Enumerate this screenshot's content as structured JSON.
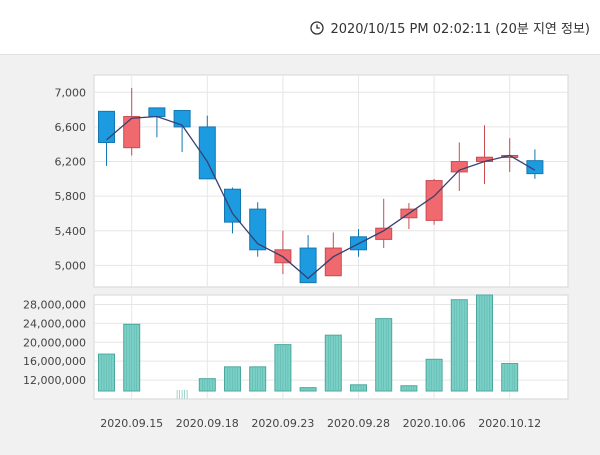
{
  "header": {
    "timestamp": "2020/10/15 PM 02:02:11 (20분 지연 정보)"
  },
  "colors": {
    "up": "#f0696e",
    "down": "#1c9be0",
    "ma": "#3a3f70",
    "volume": "#7ad0c6"
  },
  "chart_data": {
    "type": "candlestick",
    "price": {
      "ylim": [
        4750,
        7200
      ],
      "yticks": [
        5000,
        5400,
        5800,
        6200,
        6600,
        7000
      ],
      "ytick_labels": [
        "5,000",
        "5,400",
        "5,800",
        "6,200",
        "6,600",
        "7,000"
      ],
      "candles": [
        {
          "open": 6780,
          "close": 6420,
          "high": 6780,
          "low": 6150
        },
        {
          "open": 6360,
          "close": 6720,
          "high": 7050,
          "low": 6270
        },
        {
          "open": 6820,
          "close": 6720,
          "high": 6820,
          "low": 6480
        },
        {
          "open": 6790,
          "close": 6600,
          "high": 6790,
          "low": 6310
        },
        {
          "open": 6600,
          "close": 6000,
          "high": 6730,
          "low": 6000
        },
        {
          "open": 5880,
          "close": 5500,
          "high": 5900,
          "low": 5370
        },
        {
          "open": 5650,
          "close": 5180,
          "high": 5730,
          "low": 5100
        },
        {
          "open": 5030,
          "close": 5180,
          "high": 5400,
          "low": 4900
        },
        {
          "open": 5200,
          "close": 4800,
          "high": 5350,
          "low": 4800
        },
        {
          "open": 4880,
          "close": 5200,
          "high": 5380,
          "low": 4880
        },
        {
          "open": 5330,
          "close": 5180,
          "high": 5420,
          "low": 5100
        },
        {
          "open": 5300,
          "close": 5430,
          "high": 5770,
          "low": 5200
        },
        {
          "open": 5550,
          "close": 5650,
          "high": 5720,
          "low": 5420
        },
        {
          "open": 5520,
          "close": 5980,
          "high": 6000,
          "low": 5470
        },
        {
          "open": 6080,
          "close": 6200,
          "high": 6420,
          "low": 5860
        },
        {
          "open": 6200,
          "close": 6250,
          "high": 6620,
          "low": 5940
        },
        {
          "open": 6270,
          "close": 6270,
          "high": 6470,
          "low": 6080
        },
        {
          "open": 6210,
          "close": 6060,
          "high": 6340,
          "low": 6000
        }
      ],
      "ma": [
        6450,
        6700,
        6720,
        6620,
        6200,
        5600,
        5250,
        5100,
        4850,
        5100,
        5250,
        5400,
        5600,
        5800,
        6100,
        6200,
        6270,
        6100
      ]
    },
    "volume": {
      "ylim": [
        8000000,
        30000000
      ],
      "yticks": [
        12000000,
        16000000,
        20000000,
        24000000,
        28000000
      ],
      "ytick_labels": [
        "12,000,000",
        "16,000,000",
        "20,000,000",
        "24,000,000",
        "28,000,000"
      ],
      "values": [
        17500000,
        23800000,
        null,
        8300000,
        12300000,
        14800000,
        14800000,
        19500000,
        10400000,
        21500000,
        11000000,
        25000000,
        10800000,
        16400000,
        29000000,
        30000000,
        15500000,
        null
      ]
    },
    "x_labels": [
      {
        "index": 1,
        "label": "2020.09.15"
      },
      {
        "index": 4,
        "label": "2020.09.18"
      },
      {
        "index": 7,
        "label": "2020.09.23"
      },
      {
        "index": 10,
        "label": "2020.09.28"
      },
      {
        "index": 13,
        "label": "2020.10.06"
      },
      {
        "index": 16,
        "label": "2020.10.12"
      }
    ]
  }
}
